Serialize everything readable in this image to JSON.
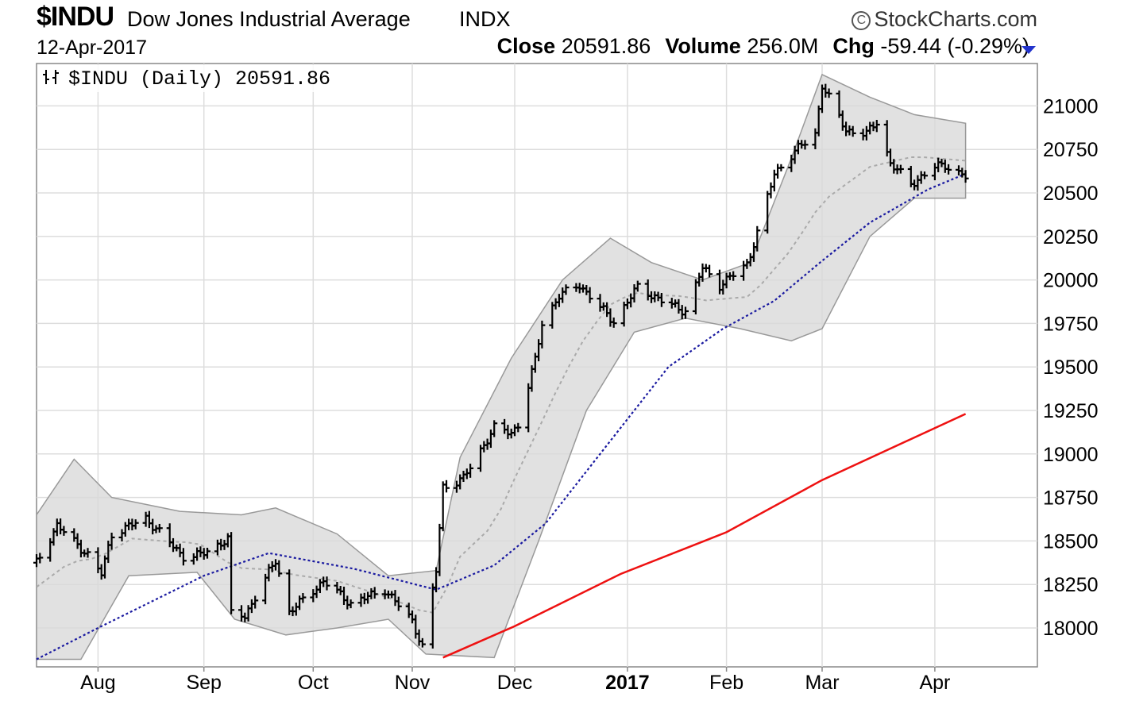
{
  "header": {
    "symbol": "$INDU",
    "name": "Dow Jones Industrial Average",
    "exchange": "INDX",
    "brand": "StockCharts.com",
    "brand_icon": "copyright-icon",
    "date": "12-Apr-2017",
    "close_label": "Close",
    "close_value": "20591.86",
    "volume_label": "Volume",
    "volume_value": "256.0M",
    "chg_label": "Chg",
    "chg_value": "-59.44 (-0.29%)",
    "chg_icon": "down-triangle-icon",
    "down_color": "#2233cc"
  },
  "chart_data": {
    "type": "ohlc",
    "legend": "$INDU (Daily) 20591.86",
    "legend_icon": "price-bars-icon",
    "legend_placement": "top-left",
    "grid": true,
    "ylim": [
      17800,
      21250
    ],
    "y_ticks": [
      "21000",
      "20750",
      "20500",
      "20250",
      "20000",
      "19750",
      "19500",
      "19250",
      "19000",
      "18750",
      "18500",
      "18250",
      "18000"
    ],
    "x_tick_labels": [
      "Aug",
      "Sep",
      "Oct",
      "Nov",
      "Dec",
      "2017",
      "Feb",
      "Mar",
      "Apr"
    ],
    "x_tick_bold": [
      false,
      false,
      false,
      false,
      false,
      true,
      false,
      false,
      false
    ],
    "colors": {
      "price": "#000000",
      "ma50": "#1a1aa0",
      "ma200": "#ee1111",
      "bands_fill": "#d9d9d9",
      "bands_edge": "#999999",
      "band_mid": "#aaaaaa"
    },
    "price_anchors": [
      [
        "2016-07-14",
        18375
      ],
      [
        "2016-07-20",
        18590
      ],
      [
        "2016-07-29",
        18420
      ],
      [
        "2016-08-02",
        18310
      ],
      [
        "2016-08-05",
        18540
      ],
      [
        "2016-08-15",
        18630
      ],
      [
        "2016-08-26",
        18410
      ],
      [
        "2016-08-31",
        18420
      ],
      [
        "2016-09-08",
        18510
      ],
      [
        "2016-09-09",
        18080
      ],
      [
        "2016-09-13",
        18070
      ],
      [
        "2016-09-22",
        18390
      ],
      [
        "2016-09-26",
        18090
      ],
      [
        "2016-10-06",
        18270
      ],
      [
        "2016-10-14",
        18140
      ],
      [
        "2016-10-24",
        18220
      ],
      [
        "2016-11-01",
        18040
      ],
      [
        "2016-11-04",
        17890
      ],
      [
        "2016-11-08",
        18330
      ],
      [
        "2016-11-10",
        18810
      ],
      [
        "2016-11-16",
        18860
      ],
      [
        "2016-11-25",
        19150
      ],
      [
        "2016-11-30",
        19120
      ],
      [
        "2016-12-02",
        19170
      ],
      [
        "2016-12-07",
        19540
      ],
      [
        "2016-12-09",
        19750
      ],
      [
        "2016-12-14",
        19910
      ],
      [
        "2016-12-20",
        19970
      ],
      [
        "2016-12-30",
        19760
      ],
      [
        "2017-01-06",
        19960
      ],
      [
        "2017-01-13",
        19880
      ],
      [
        "2017-01-20",
        19820
      ],
      [
        "2017-01-25",
        20070
      ],
      [
        "2017-01-30",
        19970
      ],
      [
        "2017-02-07",
        20090
      ],
      [
        "2017-02-10",
        20270
      ],
      [
        "2017-02-15",
        20610
      ],
      [
        "2017-02-21",
        20740
      ],
      [
        "2017-02-27",
        20840
      ],
      [
        "2017-03-01",
        21120
      ],
      [
        "2017-03-08",
        20860
      ],
      [
        "2017-03-14",
        20840
      ],
      [
        "2017-03-17",
        20910
      ],
      [
        "2017-03-21",
        20670
      ],
      [
        "2017-03-27",
        20550
      ],
      [
        "2017-04-03",
        20650
      ],
      [
        "2017-04-06",
        20660
      ],
      [
        "2017-04-12",
        20592
      ]
    ],
    "ma50_anchors": [
      [
        "2016-07-14",
        17820
      ],
      [
        "2016-08-01",
        18000
      ],
      [
        "2016-09-01",
        18300
      ],
      [
        "2016-09-20",
        18430
      ],
      [
        "2016-10-15",
        18340
      ],
      [
        "2016-11-08",
        18220
      ],
      [
        "2016-11-25",
        18360
      ],
      [
        "2016-12-10",
        18600
      ],
      [
        "2017-01-01",
        19150
      ],
      [
        "2017-01-15",
        19500
      ],
      [
        "2017-01-31",
        19720
      ],
      [
        "2017-02-15",
        19880
      ],
      [
        "2017-03-01",
        20110
      ],
      [
        "2017-03-15",
        20330
      ],
      [
        "2017-04-01",
        20520
      ],
      [
        "2017-04-12",
        20610
      ]
    ],
    "ma200_anchors": [
      [
        "2016-11-10",
        17830
      ],
      [
        "2016-12-01",
        18010
      ],
      [
        "2017-01-01",
        18310
      ],
      [
        "2017-02-01",
        18550
      ],
      [
        "2017-03-01",
        18850
      ],
      [
        "2017-04-12",
        19230
      ]
    ],
    "bands_upper_anchors": [
      [
        "2016-07-14",
        18650
      ],
      [
        "2016-07-25",
        18970
      ],
      [
        "2016-08-05",
        18750
      ],
      [
        "2016-08-25",
        18670
      ],
      [
        "2016-09-12",
        18650
      ],
      [
        "2016-09-22",
        18690
      ],
      [
        "2016-10-10",
        18540
      ],
      [
        "2016-10-25",
        18300
      ],
      [
        "2016-11-08",
        18330
      ],
      [
        "2016-11-15",
        18980
      ],
      [
        "2016-11-30",
        19550
      ],
      [
        "2016-12-15",
        20000
      ],
      [
        "2016-12-29",
        20240
      ],
      [
        "2017-01-10",
        20100
      ],
      [
        "2017-01-25",
        20000
      ],
      [
        "2017-02-08",
        20100
      ],
      [
        "2017-02-20",
        20700
      ],
      [
        "2017-03-01",
        21180
      ],
      [
        "2017-03-15",
        21050
      ],
      [
        "2017-03-28",
        20950
      ],
      [
        "2017-04-12",
        20900
      ]
    ],
    "bands_lower_anchors": [
      [
        "2016-07-14",
        17820
      ],
      [
        "2016-07-27",
        17820
      ],
      [
        "2016-08-10",
        18300
      ],
      [
        "2016-08-30",
        18320
      ],
      [
        "2016-09-10",
        18050
      ],
      [
        "2016-09-25",
        17960
      ],
      [
        "2016-10-10",
        18000
      ],
      [
        "2016-10-25",
        18050
      ],
      [
        "2016-11-05",
        17850
      ],
      [
        "2016-11-25",
        17830
      ],
      [
        "2016-12-08",
        18500
      ],
      [
        "2016-12-22",
        19250
      ],
      [
        "2017-01-05",
        19700
      ],
      [
        "2017-01-20",
        19780
      ],
      [
        "2017-02-05",
        19720
      ],
      [
        "2017-02-20",
        19650
      ],
      [
        "2017-03-01",
        19720
      ],
      [
        "2017-03-15",
        20250
      ],
      [
        "2017-03-28",
        20470
      ],
      [
        "2017-04-12",
        20470
      ]
    ]
  }
}
